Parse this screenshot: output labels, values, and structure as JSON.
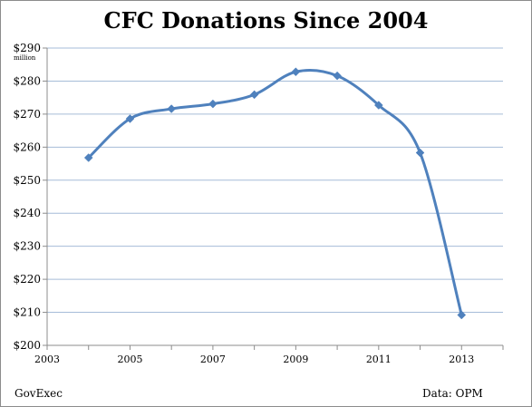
{
  "chart_data": {
    "type": "line",
    "title": "CFC Donations Since 2004",
    "y_unit_label": "million",
    "xlabel": "",
    "ylabel": "",
    "x_ticks": [
      "2003",
      "2005",
      "2007",
      "2009",
      "2011",
      "2013"
    ],
    "y_ticks": [
      "$200",
      "$210",
      "$220",
      "$230",
      "$240",
      "$250",
      "$260",
      "$270",
      "$280",
      "$290"
    ],
    "xlim": [
      2003,
      2014
    ],
    "ylim": [
      200,
      290
    ],
    "grid": true,
    "legend": "none",
    "series": [
      {
        "x": [
          2004,
          2005,
          2006,
          2007,
          2008,
          2009,
          2010,
          2011,
          2012,
          2013
        ],
        "values": [
          256.8,
          268.6,
          271.6,
          273.1,
          275.9,
          282.8,
          281.6,
          272.7,
          258.3,
          209.2
        ]
      }
    ],
    "colors": {
      "line": "#4f81bd",
      "marker": "#4f81bd",
      "grid": "#a6bcd8",
      "axis": "#8c8c8c"
    }
  },
  "footer": {
    "source_left": "GovExec",
    "source_right": "Data: OPM"
  }
}
